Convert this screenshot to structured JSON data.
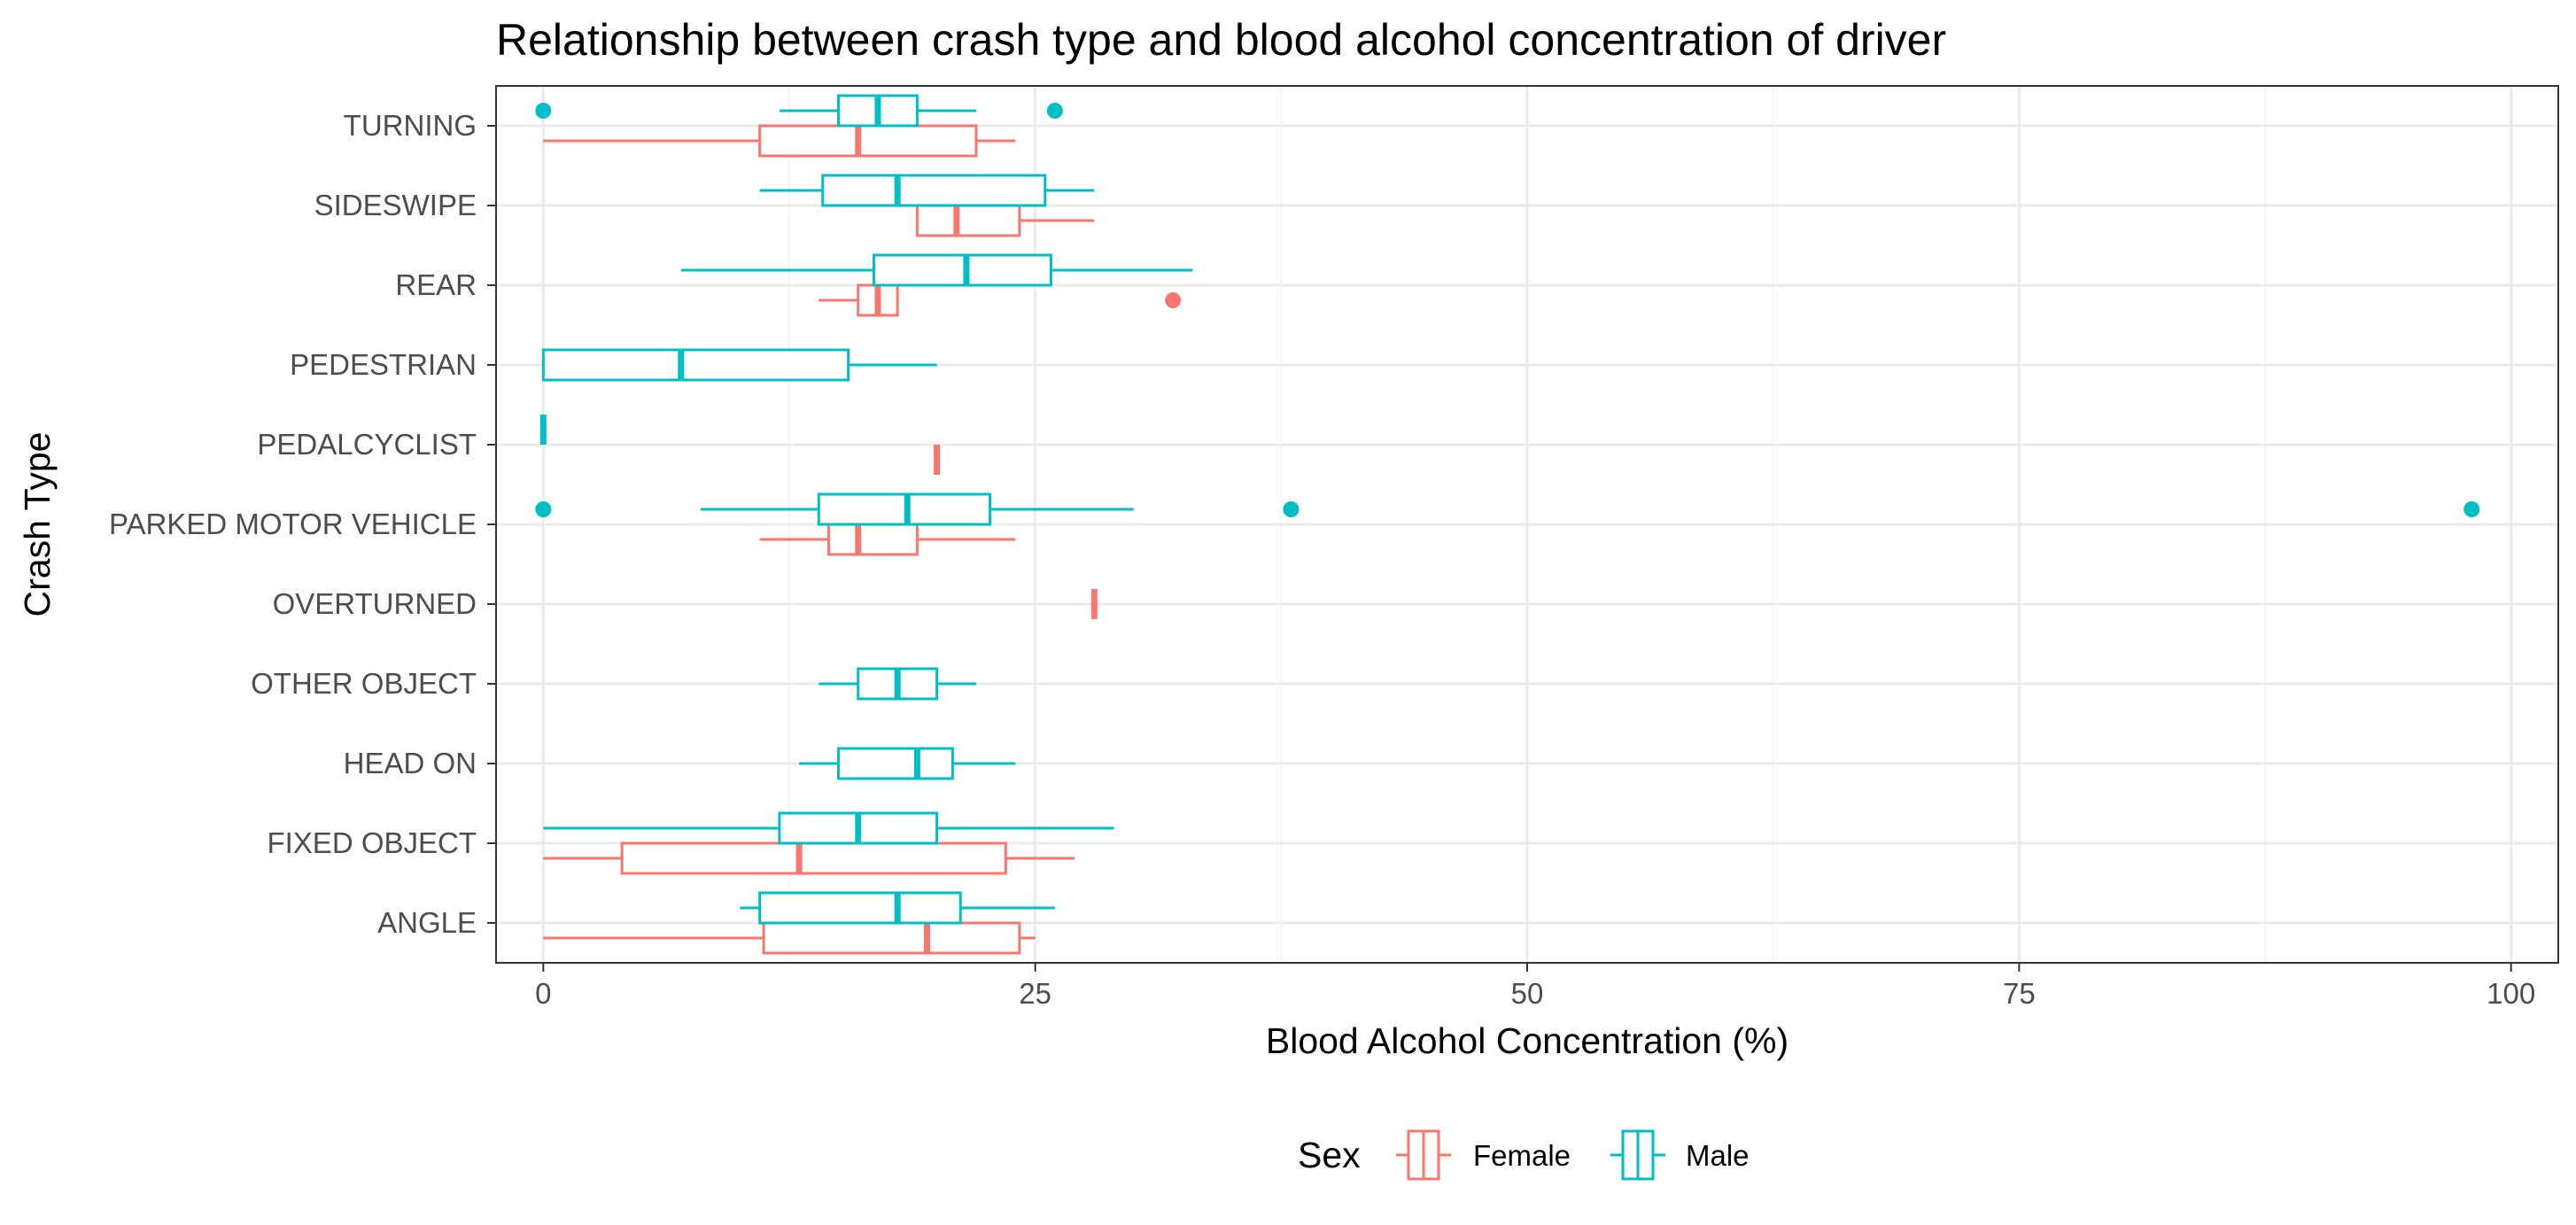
{
  "chart_data": {
    "type": "boxplot",
    "orientation": "horizontal",
    "title": "Relationship between crash type and blood alcohol concentration of driver",
    "xlabel": "Blood Alcohol Concentration (%)",
    "ylabel": "Crash Type",
    "xlim": [
      -2.4,
      102.4
    ],
    "x_ticks": [
      0,
      25,
      50,
      75,
      100
    ],
    "x_tick_labels": [
      "0",
      "25",
      "50",
      "75",
      "100"
    ],
    "grid": true,
    "legend_position": "bottom",
    "legend_title": "Sex",
    "categories": [
      "ANGLE",
      "FIXED OBJECT",
      "HEAD ON",
      "OTHER OBJECT",
      "OVERTURNED",
      "PARKED MOTOR VEHICLE",
      "PEDALCYCLIST",
      "PEDESTRIAN",
      "REAR",
      "SIDESWIPE",
      "TURNING"
    ],
    "series": [
      {
        "name": "Female",
        "color": "#F8766D",
        "boxes": [
          {
            "category": "ANGLE",
            "whisker_low": 0,
            "q1": 11.2,
            "median": 19.5,
            "q3": 24.2,
            "whisker_high": 25,
            "outliers": []
          },
          {
            "category": "FIXED OBJECT",
            "whisker_low": 0,
            "q1": 4,
            "median": 13,
            "q3": 23.5,
            "whisker_high": 27,
            "outliers": []
          },
          {
            "category": "OVERTURNED",
            "whisker_low": 28,
            "q1": 28,
            "median": 28,
            "q3": 28,
            "whisker_high": 28,
            "outliers": []
          },
          {
            "category": "PARKED MOTOR VEHICLE",
            "whisker_low": 11,
            "q1": 14.5,
            "median": 16,
            "q3": 19,
            "whisker_high": 24,
            "outliers": []
          },
          {
            "category": "PEDALCYCLIST",
            "whisker_low": 20,
            "q1": 20,
            "median": 20,
            "q3": 20,
            "whisker_high": 20,
            "outliers": []
          },
          {
            "category": "REAR",
            "whisker_low": 14,
            "q1": 16,
            "median": 17,
            "q3": 18,
            "whisker_high": 18,
            "outliers": [
              32
            ]
          },
          {
            "category": "SIDESWIPE",
            "whisker_low": 19,
            "q1": 19,
            "median": 21,
            "q3": 24.2,
            "whisker_high": 28,
            "outliers": []
          },
          {
            "category": "TURNING",
            "whisker_low": 0,
            "q1": 11,
            "median": 16,
            "q3": 22,
            "whisker_high": 24,
            "outliers": []
          }
        ]
      },
      {
        "name": "Male",
        "color": "#00BFC4",
        "boxes": [
          {
            "category": "ANGLE",
            "whisker_low": 10,
            "q1": 11,
            "median": 18,
            "q3": 21.2,
            "whisker_high": 26,
            "outliers": []
          },
          {
            "category": "FIXED OBJECT",
            "whisker_low": 0,
            "q1": 12,
            "median": 16,
            "q3": 20,
            "whisker_high": 29,
            "outliers": []
          },
          {
            "category": "HEAD ON",
            "whisker_low": 13,
            "q1": 15,
            "median": 19,
            "q3": 20.8,
            "whisker_high": 24,
            "outliers": []
          },
          {
            "category": "OTHER OBJECT",
            "whisker_low": 14,
            "q1": 16,
            "median": 18,
            "q3": 20,
            "whisker_high": 22,
            "outliers": []
          },
          {
            "category": "PARKED MOTOR VEHICLE",
            "whisker_low": 8,
            "q1": 14,
            "median": 18.5,
            "q3": 22.7,
            "whisker_high": 30,
            "outliers": [
              0,
              38,
              98
            ]
          },
          {
            "category": "PEDALCYCLIST",
            "whisker_low": 0,
            "q1": 0,
            "median": 0,
            "q3": 0,
            "whisker_high": 0,
            "outliers": []
          },
          {
            "category": "PEDESTRIAN",
            "whisker_low": 0,
            "q1": 0,
            "median": 7,
            "q3": 15.5,
            "whisker_high": 20,
            "outliers": []
          },
          {
            "category": "REAR",
            "whisker_low": 7,
            "q1": 16.8,
            "median": 21.5,
            "q3": 25.8,
            "whisker_high": 33,
            "outliers": []
          },
          {
            "category": "SIDESWIPE",
            "whisker_low": 11,
            "q1": 14.2,
            "median": 18,
            "q3": 25.5,
            "whisker_high": 28,
            "outliers": []
          },
          {
            "category": "TURNING",
            "whisker_low": 12,
            "q1": 15,
            "median": 17,
            "q3": 19,
            "whisker_high": 22,
            "outliers": [
              0,
              26
            ]
          }
        ]
      }
    ]
  }
}
